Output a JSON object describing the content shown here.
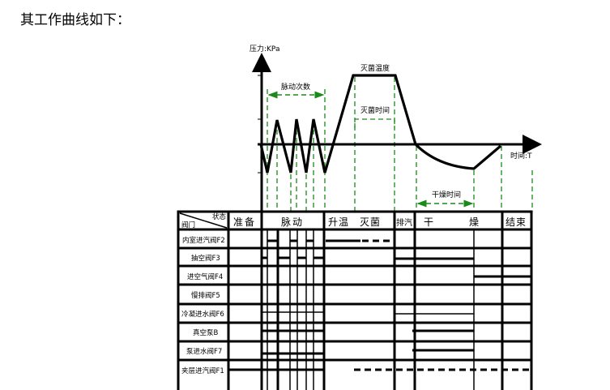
{
  "intro": "其工作曲线如下：",
  "curve": {
    "y_axis_label": "压力:KPa",
    "x_axis_label": "时间:T",
    "pulse_count": "脉动次数",
    "sterilize_temp": "灭菌温度",
    "sterilize_time": "灭菌时间",
    "dry_time": "干燥时间",
    "line_color": "#000000",
    "guide_color": "#1a8a1a"
  },
  "table": {
    "corner_top": "状态",
    "corner_bottom": "阀门",
    "stages": [
      "准备",
      "脉动",
      "升温　灭菌",
      "排汽",
      "干　　　燥",
      "结束"
    ],
    "rows": [
      "内室进汽阀F2",
      "抽空阀F3",
      "进空气阀F4",
      "慢排阀F5",
      "冷凝进水阀F6",
      "真空泵B",
      "泵进水阀F7",
      "夹层进汽阀F1"
    ]
  }
}
